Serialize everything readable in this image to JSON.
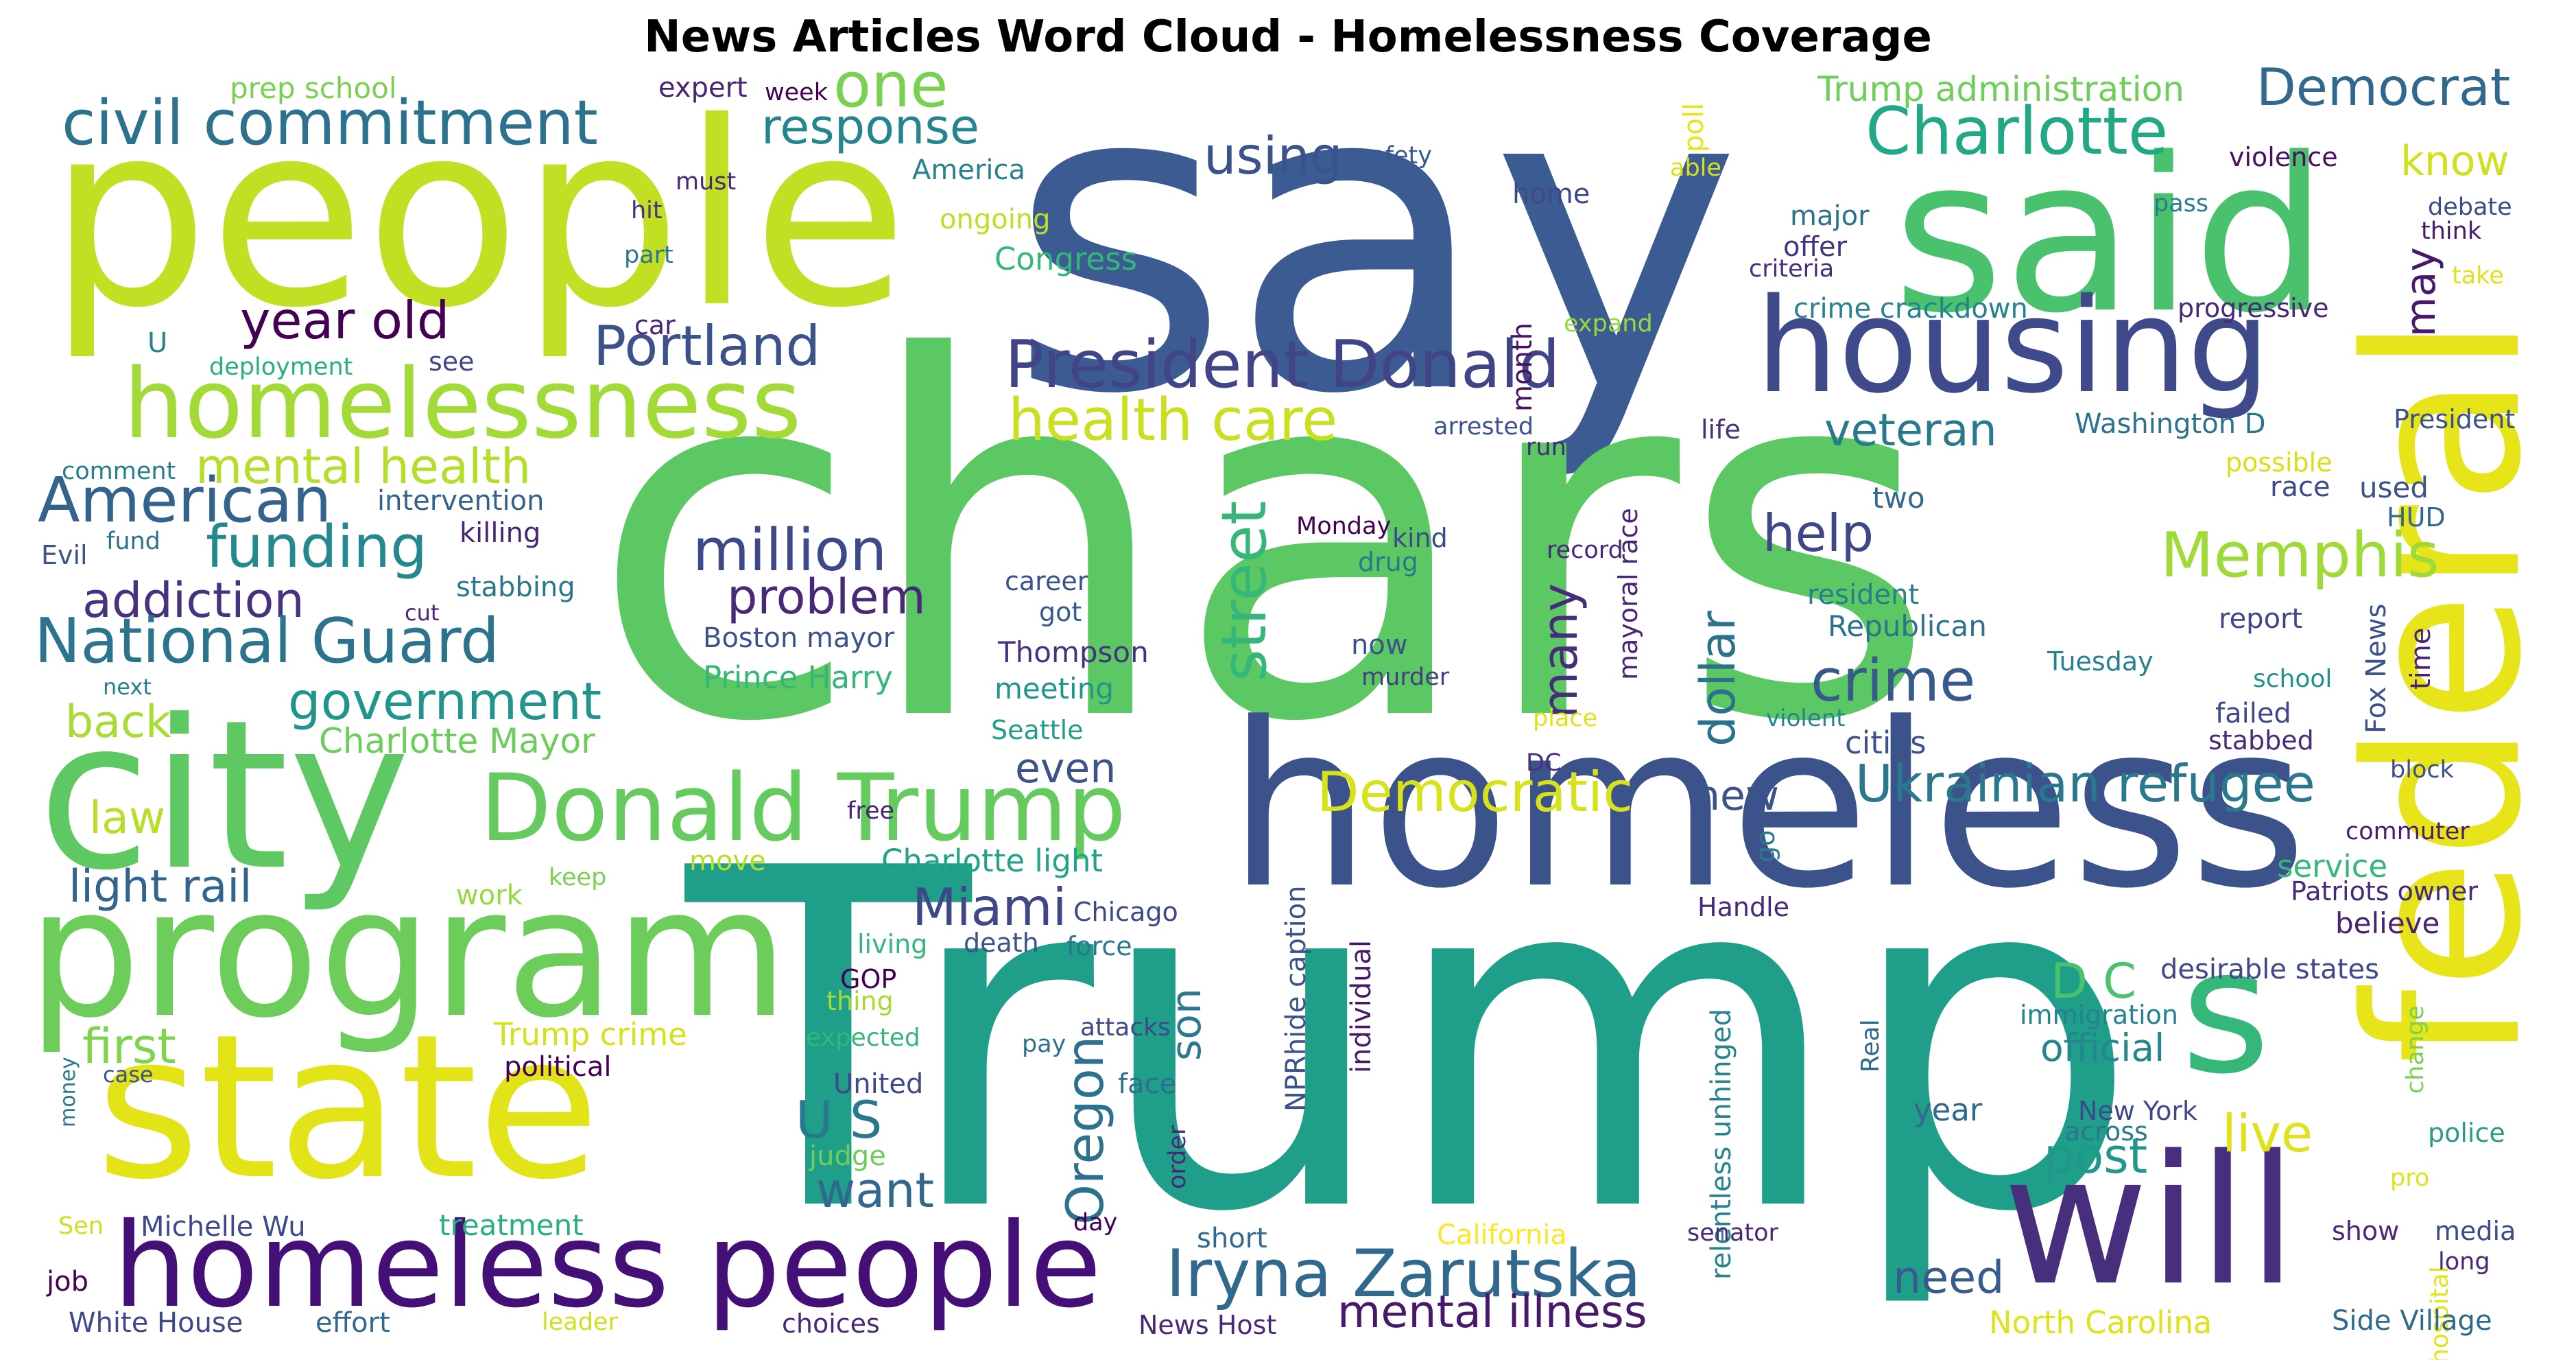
{
  "title": "News Articles Word Cloud - Homelessness Coverage",
  "palette": [
    "#440154",
    "#482878",
    "#3e4989",
    "#31688e",
    "#26828e",
    "#1f9e89",
    "#35b779",
    "#6ece58",
    "#b5de2b",
    "#fde725"
  ],
  "words": [
    {
      "text": "say",
      "color": "#3b5b92"
    },
    {
      "text": "chars",
      "color": "#5cc863"
    },
    {
      "text": "Trump",
      "color": "#1f9e89"
    },
    {
      "text": "people",
      "color": "#c2df23"
    },
    {
      "text": "homeless",
      "color": "#3b528b"
    },
    {
      "text": "said",
      "color": "#4ac16d"
    },
    {
      "text": "housing",
      "color": "#3e4a89"
    },
    {
      "text": "federal",
      "color": "#e7e419"
    },
    {
      "text": "city",
      "color": "#5ec962"
    },
    {
      "text": "program",
      "color": "#6ccd5a"
    },
    {
      "text": "state",
      "color": "#e2e418"
    },
    {
      "text": "will",
      "color": "#472f7d"
    },
    {
      "text": "homeless people",
      "color": "#440f76"
    },
    {
      "text": "s",
      "color": "#35b779"
    },
    {
      "text": "homelessness",
      "color": "#a2da37"
    },
    {
      "text": "Donald Trump",
      "color": "#65cb5e"
    },
    {
      "text": "civil commitment",
      "color": "#2c728e"
    },
    {
      "text": "Charlotte",
      "color": "#22a884"
    },
    {
      "text": "President Donald",
      "color": "#414487"
    },
    {
      "text": "Iryna Zarutska",
      "color": "#31688e"
    },
    {
      "text": "Democrat",
      "color": "#31688e"
    },
    {
      "text": "one",
      "color": "#7ad151"
    },
    {
      "text": "response",
      "color": "#25858e"
    },
    {
      "text": "using",
      "color": "#3a538b"
    },
    {
      "text": "year old",
      "color": "#440154"
    },
    {
      "text": "Portland",
      "color": "#3b528b"
    },
    {
      "text": "health care",
      "color": "#c8e020"
    },
    {
      "text": "mental health",
      "color": "#b5de2b"
    },
    {
      "text": "American",
      "color": "#33638d"
    },
    {
      "text": "funding",
      "color": "#23898e"
    },
    {
      "text": "addiction",
      "color": "#46327e"
    },
    {
      "text": "National Guard",
      "color": "#2c738e"
    },
    {
      "text": "million",
      "color": "#3e4989"
    },
    {
      "text": "problem",
      "color": "#482878"
    },
    {
      "text": "government",
      "color": "#1f958b"
    },
    {
      "text": "back",
      "color": "#a8db34"
    },
    {
      "text": "Charlotte Mayor",
      "color": "#6ccd5a"
    },
    {
      "text": "law",
      "color": "#b8de29"
    },
    {
      "text": "light rail",
      "color": "#32658e"
    },
    {
      "text": "first",
      "color": "#7fd34e"
    },
    {
      "text": "Memphis",
      "color": "#a0da39"
    },
    {
      "text": "help",
      "color": "#3f4788"
    },
    {
      "text": "veteran",
      "color": "#29798e"
    },
    {
      "text": "crime",
      "color": "#375a8c"
    },
    {
      "text": "Ukrainian refugee",
      "color": "#2a788e"
    },
    {
      "text": "Democratic",
      "color": "#d8e219"
    },
    {
      "text": "street",
      "color": "#35b779"
    },
    {
      "text": "many",
      "color": "#472c7a"
    },
    {
      "text": "dollar",
      "color": "#2c728e"
    },
    {
      "text": "new",
      "color": "#3b528b"
    },
    {
      "text": "Miami",
      "color": "#3f4788"
    },
    {
      "text": "even",
      "color": "#3b528b"
    },
    {
      "text": "U S",
      "color": "#2a788e"
    },
    {
      "text": "want",
      "color": "#31688e"
    },
    {
      "text": "son",
      "color": "#2a788e"
    },
    {
      "text": "Oregon",
      "color": "#2c728e"
    },
    {
      "text": "D C",
      "color": "#4ac16d"
    },
    {
      "text": "live",
      "color": "#dde318"
    },
    {
      "text": "post",
      "color": "#1f988b"
    },
    {
      "text": "official",
      "color": "#24868e"
    },
    {
      "text": "need",
      "color": "#365c8d"
    },
    {
      "text": "mental illness",
      "color": "#48186a"
    },
    {
      "text": "know",
      "color": "#d0e11c"
    },
    {
      "text": "may",
      "color": "#48186a"
    },
    {
      "text": "Trump administration",
      "color": "#6ece58"
    },
    {
      "text": "expert",
      "color": "#482475"
    },
    {
      "text": "week",
      "color": "#440154"
    },
    {
      "text": "prep school",
      "color": "#7ad151"
    },
    {
      "text": "must",
      "color": "#482878"
    },
    {
      "text": "America",
      "color": "#26828e"
    },
    {
      "text": "ongoing",
      "color": "#bddf26"
    },
    {
      "text": "Congress",
      "color": "#35b779"
    },
    {
      "text": "safety",
      "color": "#38598c"
    },
    {
      "text": "home",
      "color": "#3e4989"
    },
    {
      "text": "poll",
      "color": "#e5e419"
    },
    {
      "text": "able",
      "color": "#d8e219"
    },
    {
      "text": "month",
      "color": "#471365"
    },
    {
      "text": "expand",
      "color": "#95d840"
    },
    {
      "text": "major",
      "color": "#2c728e"
    },
    {
      "text": "offer",
      "color": "#463480"
    },
    {
      "text": "criteria",
      "color": "#472d7b"
    },
    {
      "text": "crime crackdown",
      "color": "#25838e"
    },
    {
      "text": "progressive",
      "color": "#482878"
    },
    {
      "text": "violence",
      "color": "#471063"
    },
    {
      "text": "pass",
      "color": "#287c8e"
    },
    {
      "text": "debate",
      "color": "#3e4989"
    },
    {
      "text": "think",
      "color": "#481a6c"
    },
    {
      "text": "take",
      "color": "#dde318"
    },
    {
      "text": "hit",
      "color": "#46327e"
    },
    {
      "text": "part",
      "color": "#2a768e"
    },
    {
      "text": "car",
      "color": "#482475"
    },
    {
      "text": "see",
      "color": "#3f4788"
    },
    {
      "text": "U",
      "color": "#25838e"
    },
    {
      "text": "deployment",
      "color": "#2ab07f"
    },
    {
      "text": "comment",
      "color": "#287c8e"
    },
    {
      "text": "intervention",
      "color": "#33638d"
    },
    {
      "text": "fund",
      "color": "#2c728e"
    },
    {
      "text": "killing",
      "color": "#482475"
    },
    {
      "text": "Evil",
      "color": "#3b528b"
    },
    {
      "text": "stabbing",
      "color": "#2a788e"
    },
    {
      "text": "cut",
      "color": "#482575"
    },
    {
      "text": "next",
      "color": "#26828e"
    },
    {
      "text": "arrested",
      "color": "#3b528b"
    },
    {
      "text": "run",
      "color": "#482878"
    },
    {
      "text": "life",
      "color": "#46307e"
    },
    {
      "text": "Washington D",
      "color": "#2c728e"
    },
    {
      "text": "President",
      "color": "#3b528b"
    },
    {
      "text": "possible",
      "color": "#d5e21a"
    },
    {
      "text": "race",
      "color": "#3e4989"
    },
    {
      "text": "used",
      "color": "#3b528b"
    },
    {
      "text": "HUD",
      "color": "#31688e"
    },
    {
      "text": "two",
      "color": "#31688e"
    },
    {
      "text": "Monday",
      "color": "#440154"
    },
    {
      "text": "kind",
      "color": "#3e4989"
    },
    {
      "text": "drug",
      "color": "#2a788e"
    },
    {
      "text": "record",
      "color": "#482878"
    },
    {
      "text": "mayoral race",
      "color": "#482475"
    },
    {
      "text": "career",
      "color": "#3b528b"
    },
    {
      "text": "got",
      "color": "#365c8d"
    },
    {
      "text": "Boston mayor",
      "color": "#3b528b"
    },
    {
      "text": "Thompson",
      "color": "#46327e"
    },
    {
      "text": "Prince Harry",
      "color": "#35b779"
    },
    {
      "text": "meeting",
      "color": "#1f968b"
    },
    {
      "text": "now",
      "color": "#3b528b"
    },
    {
      "text": "murder",
      "color": "#433e85"
    },
    {
      "text": "resident",
      "color": "#287d8e"
    },
    {
      "text": "Republican",
      "color": "#2c728e"
    },
    {
      "text": "report",
      "color": "#3f4788"
    },
    {
      "text": "school",
      "color": "#20928c"
    },
    {
      "text": "Fox News",
      "color": "#3b528b"
    },
    {
      "text": "time",
      "color": "#482475"
    },
    {
      "text": "Tuesday",
      "color": "#26828e"
    },
    {
      "text": "violent",
      "color": "#25848e"
    },
    {
      "text": "place",
      "color": "#dde318"
    },
    {
      "text": "cities",
      "color": "#3b528b"
    },
    {
      "text": "failed",
      "color": "#3e4989"
    },
    {
      "text": "stabbed",
      "color": "#472c7a"
    },
    {
      "text": "block",
      "color": "#3b528b"
    },
    {
      "text": "Seattle",
      "color": "#1f9e89"
    },
    {
      "text": "DC",
      "color": "#46307e"
    },
    {
      "text": "free",
      "color": "#482475"
    },
    {
      "text": "commuter",
      "color": "#481c6e"
    },
    {
      "text": "Charlotte light",
      "color": "#20a386"
    },
    {
      "text": "go",
      "color": "#2a788e"
    },
    {
      "text": "service",
      "color": "#35b779"
    },
    {
      "text": "Patriots owner",
      "color": "#482878"
    },
    {
      "text": "believe",
      "color": "#482173"
    },
    {
      "text": "move",
      "color": "#b5de2b"
    },
    {
      "text": "keep",
      "color": "#7ad151"
    },
    {
      "text": "work",
      "color": "#95d840"
    },
    {
      "text": "Chicago",
      "color": "#3e4989"
    },
    {
      "text": "living",
      "color": "#35b779"
    },
    {
      "text": "death",
      "color": "#3b528b"
    },
    {
      "text": "force",
      "color": "#2a788e"
    },
    {
      "text": "Handle",
      "color": "#482878"
    },
    {
      "text": "NPRhide caption",
      "color": "#3b528b"
    },
    {
      "text": "desirable states",
      "color": "#3e4989"
    },
    {
      "text": "immigration",
      "color": "#26828e"
    },
    {
      "text": "change",
      "color": "#7ad151"
    },
    {
      "text": "GOP",
      "color": "#440154"
    },
    {
      "text": "thing",
      "color": "#a5db36"
    },
    {
      "text": "Trump crime",
      "color": "#d5e21a"
    },
    {
      "text": "expected",
      "color": "#35b779"
    },
    {
      "text": "attacks",
      "color": "#3e4989"
    },
    {
      "text": "pay",
      "color": "#2c728e"
    },
    {
      "text": "individual",
      "color": "#48186a"
    },
    {
      "text": "relentless unhinged",
      "color": "#25838e"
    },
    {
      "text": "Real",
      "color": "#31688e"
    },
    {
      "text": "political",
      "color": "#440154"
    },
    {
      "text": "money",
      "color": "#2a788e"
    },
    {
      "text": "case",
      "color": "#3b528b"
    },
    {
      "text": "United",
      "color": "#3e4989"
    },
    {
      "text": "face",
      "color": "#2c728e"
    },
    {
      "text": "order",
      "color": "#482878"
    },
    {
      "text": "New York",
      "color": "#3e4989"
    },
    {
      "text": "across",
      "color": "#2a788e"
    },
    {
      "text": "year",
      "color": "#31688e"
    },
    {
      "text": "police",
      "color": "#2a9c84"
    },
    {
      "text": "judge",
      "color": "#6ece58"
    },
    {
      "text": "pro",
      "color": "#dde318"
    },
    {
      "text": "Sen",
      "color": "#cde11d"
    },
    {
      "text": "Michelle Wu",
      "color": "#3e4989"
    },
    {
      "text": "treatment",
      "color": "#29af7f"
    },
    {
      "text": "day",
      "color": "#440154"
    },
    {
      "text": "short",
      "color": "#31688e"
    },
    {
      "text": "California",
      "color": "#fde725"
    },
    {
      "text": "senator",
      "color": "#482878"
    },
    {
      "text": "show",
      "color": "#482878"
    },
    {
      "text": "media",
      "color": "#3e4989"
    },
    {
      "text": "hospital",
      "color": "#e2e418"
    },
    {
      "text": "long",
      "color": "#482878"
    },
    {
      "text": "job",
      "color": "#440154"
    },
    {
      "text": "White House",
      "color": "#3e4989"
    },
    {
      "text": "effort",
      "color": "#31688e"
    },
    {
      "text": "leader",
      "color": "#d0e11c"
    },
    {
      "text": "choices",
      "color": "#482878"
    },
    {
      "text": "News Host",
      "color": "#482878"
    },
    {
      "text": "North Carolina",
      "color": "#dde318"
    },
    {
      "text": "Side Village",
      "color": "#31688e"
    }
  ]
}
